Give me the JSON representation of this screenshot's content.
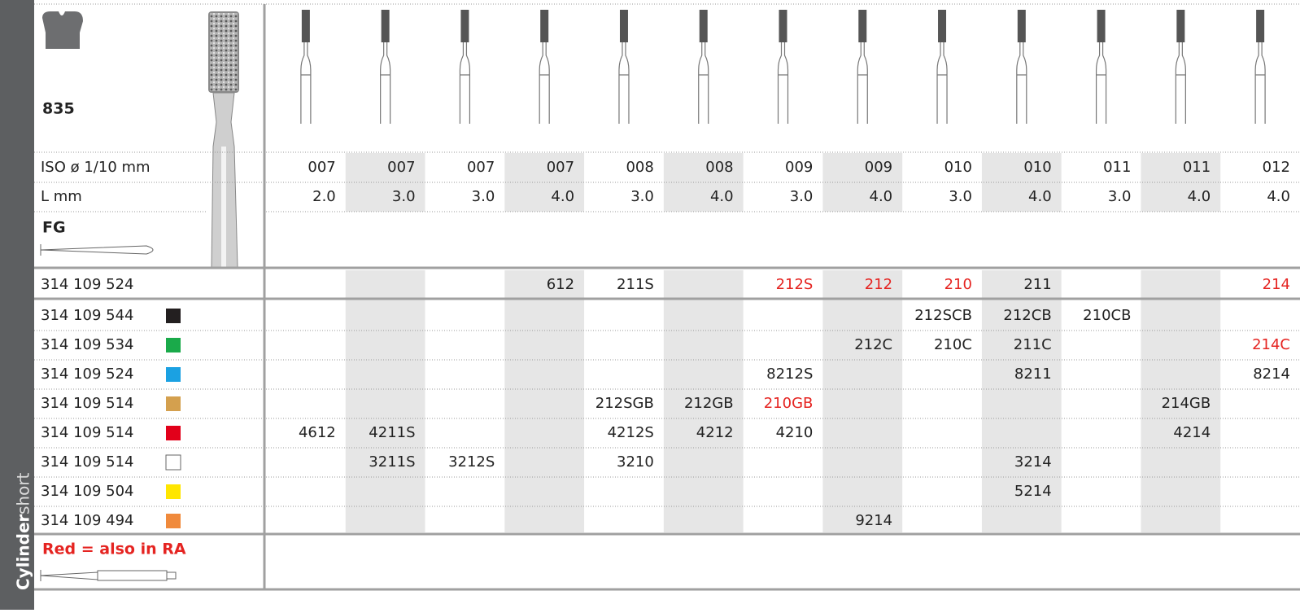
{
  "sidebar": {
    "title": "Cylinder",
    "subtitle": "short"
  },
  "header": {
    "model": "835",
    "iso_label": "ISO ø 1/10 mm",
    "length_label": "L mm",
    "shank": "FG"
  },
  "iso": [
    "007",
    "007",
    "007",
    "007",
    "008",
    "008",
    "009",
    "009",
    "010",
    "010",
    "011",
    "011",
    "012"
  ],
  "length": [
    "2.0",
    "3.0",
    "3.0",
    "4.0",
    "3.0",
    "4.0",
    "3.0",
    "4.0",
    "3.0",
    "4.0",
    "3.0",
    "4.0",
    "4.0"
  ],
  "rows": [
    {
      "code": "314 109 524",
      "swatch": null,
      "cells": [
        null,
        null,
        null,
        "612",
        "211S",
        null,
        {
          "text": "212S",
          "color": "#e52421"
        },
        {
          "text": "212",
          "color": "#e52421"
        },
        {
          "text": "210",
          "color": "#e52421"
        },
        "211",
        null,
        null,
        {
          "text": "214",
          "color": "#e52421"
        }
      ]
    },
    {
      "code": "314 109 544",
      "swatch": "#231f20",
      "cells": [
        null,
        null,
        null,
        null,
        null,
        null,
        null,
        null,
        "212SCB",
        "212CB",
        "210CB",
        null,
        null
      ]
    },
    {
      "code": "314 109 534",
      "swatch": "#1aaa4a",
      "cells": [
        null,
        null,
        null,
        null,
        null,
        null,
        null,
        "212C",
        "210C",
        "211C",
        null,
        null,
        {
          "text": "214C",
          "color": "#e52421"
        }
      ]
    },
    {
      "code": "314 109 524",
      "swatch": "#1ba1e2",
      "cells": [
        null,
        null,
        null,
        null,
        null,
        null,
        "8212S",
        null,
        null,
        "8211",
        null,
        null,
        "8214"
      ]
    },
    {
      "code": "314 109 514",
      "swatch": "#d4a04e",
      "cells": [
        null,
        null,
        null,
        null,
        "212SGB",
        "212GB",
        {
          "text": "210GB",
          "color": "#e52421"
        },
        null,
        null,
        null,
        null,
        "214GB",
        null
      ]
    },
    {
      "code": "314 109 514",
      "swatch": "#e2001a",
      "cells": [
        "4612",
        "4211S",
        null,
        null,
        "4212S",
        "4212",
        "4210",
        null,
        null,
        null,
        null,
        "4214",
        null
      ]
    },
    {
      "code": "314 109 514",
      "swatch": "#ffffff",
      "cells": [
        null,
        "3211S",
        "3212S",
        null,
        "3210",
        null,
        null,
        null,
        null,
        "3214",
        null,
        null,
        null
      ]
    },
    {
      "code": "314 109 504",
      "swatch": "#ffe600",
      "cells": [
        null,
        null,
        null,
        null,
        null,
        null,
        null,
        null,
        null,
        "5214",
        null,
        null,
        null
      ]
    },
    {
      "code": "314 109 494",
      "swatch": "#f08a3c",
      "cells": [
        null,
        null,
        null,
        null,
        null,
        null,
        null,
        "9214",
        null,
        null,
        null,
        null,
        null
      ]
    }
  ],
  "footer": {
    "note": "Red = also in RA",
    "note_color": "#e52421"
  }
}
